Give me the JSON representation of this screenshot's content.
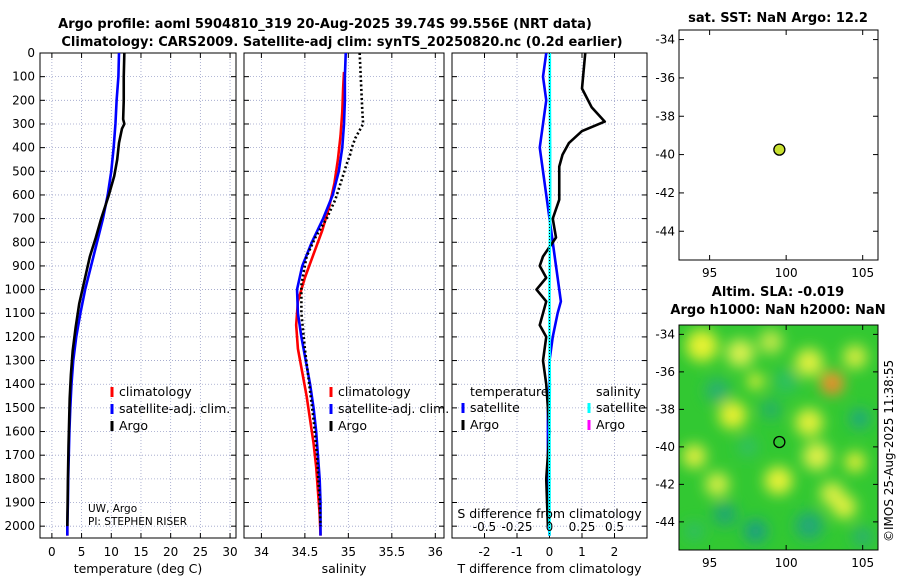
{
  "header": {
    "title_line1": "Argo profile: aoml 5904810_319 20-Aug-2025 39.74S 99.556E (NRT data)",
    "title_line2": "Climatology: CARS2009. Satellite-adj clim: synTS_20250820.nc (0.2d earlier)"
  },
  "colors": {
    "climatology": "#ff0000",
    "satellite_adj": "#0000ff",
    "argo": "#000000",
    "satellite_salinity": "#00ffff",
    "argo_salinity": "#ff00ff",
    "grid": "#9aa0c8",
    "marker_fill": "#c8e030"
  },
  "chart_data": [
    {
      "id": "temperature",
      "type": "line",
      "xlabel": "temperature (deg C)",
      "ylabel": "",
      "xlim": [
        -2,
        31
      ],
      "ylim": [
        2050,
        0
      ],
      "xticks": [
        0,
        5,
        10,
        15,
        20,
        25,
        30
      ],
      "yticks": [
        0,
        100,
        200,
        300,
        400,
        500,
        600,
        700,
        800,
        900,
        1000,
        1100,
        1200,
        1300,
        1400,
        1500,
        1600,
        1700,
        1800,
        1900,
        2000
      ],
      "legend": [
        "climatology",
        "satellite-adj. clim.",
        "Argo"
      ],
      "note_line1": "UW, Argo",
      "note_line2": "PI: STEPHEN RISER",
      "series": [
        {
          "name": "climatology",
          "x": [
            2.6,
            2.6
          ],
          "y": [
            1990,
            2040
          ]
        },
        {
          "name": "satellite-adj. clim.",
          "x": [
            11.3,
            11.2,
            10.9,
            10.7,
            10.4,
            10.0,
            9.4,
            8.6,
            7.6,
            6.6,
            5.6,
            4.8,
            4.1,
            3.6,
            3.3,
            3.1,
            2.95,
            2.85,
            2.75,
            2.7,
            2.65,
            2.6,
            2.6
          ],
          "y": [
            0,
            100,
            200,
            300,
            400,
            500,
            600,
            700,
            800,
            900,
            1000,
            1100,
            1200,
            1300,
            1400,
            1500,
            1600,
            1700,
            1800,
            1900,
            1950,
            2000,
            2040
          ]
        },
        {
          "name": "Argo",
          "x": [
            12.2,
            12.1,
            12.1,
            12.0,
            12.2,
            11.8,
            11.3,
            11.0,
            10.5,
            9.6,
            8.3,
            7.4,
            6.4,
            5.5,
            4.6,
            4.0,
            3.5,
            3.2,
            3.0,
            2.9,
            2.8,
            2.7,
            2.65,
            2.6
          ],
          "y": [
            0,
            100,
            200,
            280,
            300,
            320,
            380,
            450,
            520,
            600,
            700,
            780,
            860,
            960,
            1060,
            1160,
            1260,
            1360,
            1460,
            1560,
            1660,
            1800,
            1900,
            2000
          ]
        }
      ]
    },
    {
      "id": "salinity",
      "type": "line",
      "xlabel": "salinity",
      "ylabel": "",
      "xlim": [
        33.8,
        36.1
      ],
      "ylim": [
        2050,
        0
      ],
      "xticks": [
        34,
        34.5,
        35,
        35.5,
        36
      ],
      "xticklabels": [
        "34",
        "34.5",
        "35",
        "35.5",
        "36"
      ],
      "legend": [
        "climatology",
        "satellite-adj. clim.",
        "Argo"
      ],
      "series": [
        {
          "name": "climatology",
          "x": [
            34.95,
            34.94,
            34.93,
            34.91,
            34.88,
            34.84,
            34.78,
            34.7,
            34.6,
            34.5,
            34.42,
            34.4,
            34.42,
            34.47,
            34.52,
            34.56,
            34.6,
            34.63,
            34.65,
            34.67,
            34.68
          ],
          "y": [
            80,
            150,
            250,
            350,
            450,
            550,
            650,
            750,
            850,
            950,
            1050,
            1150,
            1250,
            1350,
            1450,
            1550,
            1650,
            1750,
            1850,
            1950,
            2040
          ]
        },
        {
          "name": "satellite-adj. clim.",
          "x": [
            34.97,
            34.96,
            34.96,
            34.95,
            34.93,
            34.89,
            34.82,
            34.71,
            34.58,
            34.47,
            34.41,
            34.42,
            34.46,
            34.51,
            34.56,
            34.6,
            34.63,
            34.65,
            34.67,
            34.68,
            34.68
          ],
          "y": [
            0,
            100,
            200,
            300,
            400,
            500,
            600,
            700,
            800,
            900,
            1000,
            1100,
            1200,
            1300,
            1400,
            1500,
            1600,
            1700,
            1800,
            1900,
            2040
          ]
        },
        {
          "name": "Argo",
          "x": [
            35.13,
            35.14,
            35.15,
            35.16,
            35.17,
            35.14,
            35.08,
            35.04,
            35.02,
            34.98,
            34.92,
            34.85,
            34.75,
            34.62,
            34.52,
            34.46,
            34.46,
            34.5,
            34.55,
            34.6,
            34.64,
            34.67,
            34.68
          ],
          "y": [
            0,
            80,
            160,
            240,
            300,
            320,
            360,
            400,
            430,
            470,
            540,
            620,
            700,
            780,
            860,
            980,
            1100,
            1250,
            1400,
            1550,
            1700,
            1900,
            2000
          ]
        }
      ]
    },
    {
      "id": "difference",
      "type": "line",
      "xlabel": "T difference from climatology",
      "xlabel_top": "S difference from climatology",
      "ylabel": "",
      "xlim": [
        -3,
        3
      ],
      "ylim": [
        2050,
        0
      ],
      "xticks": [
        -2,
        -1,
        0,
        1,
        2
      ],
      "top_ticks": [
        -0.5,
        -0.25,
        0,
        0.25,
        0.5
      ],
      "top_ticklabels": [
        "-0.5",
        "-0.25",
        "0",
        "0.25",
        "0.5"
      ],
      "legend_titles": [
        "temperature",
        "salinity"
      ],
      "legend": [
        "satellite",
        "Argo",
        "satellite",
        "Argo"
      ],
      "series": [
        {
          "name": "T satellite",
          "x": [
            -0.1,
            -0.2,
            -0.1,
            -0.2,
            -0.3,
            -0.2,
            -0.1,
            0.0,
            0.1,
            0.2,
            0.3,
            0.35,
            0.25,
            0.1,
            0.0,
            0.0,
            -0.05,
            -0.05,
            -0.05,
            -0.05,
            0.0
          ],
          "y": [
            0,
            100,
            200,
            300,
            400,
            500,
            600,
            700,
            800,
            900,
            1000,
            1050,
            1100,
            1200,
            1300,
            1400,
            1500,
            1600,
            1800,
            1900,
            2040
          ]
        },
        {
          "name": "T Argo",
          "x": [
            1.1,
            1.0,
            1.3,
            1.5,
            1.7,
            1.0,
            0.6,
            0.4,
            0.3,
            0.3,
            0.3,
            0.1,
            0.2,
            0.0,
            -0.2,
            -0.3,
            -0.1,
            -0.4,
            -0.1,
            -0.2,
            -0.3,
            -0.1,
            -0.2,
            -0.1,
            0.0,
            -0.1,
            -0.05
          ],
          "y": [
            0,
            150,
            230,
            260,
            290,
            330,
            380,
            430,
            480,
            560,
            620,
            700,
            780,
            820,
            860,
            900,
            950,
            1000,
            1050,
            1100,
            1150,
            1200,
            1300,
            1400,
            1600,
            1800,
            2000
          ]
        },
        {
          "name": "S satellite",
          "x": [
            0.01,
            0.01,
            0.02,
            0.02,
            0.01,
            0.0,
            0.0,
            0.01,
            0.0,
            0.0,
            0.0,
            0.0
          ],
          "y": [
            0,
            200,
            400,
            600,
            800,
            1000,
            1200,
            1400,
            1600,
            1800,
            1950,
            2040
          ]
        },
        {
          "name": "S Argo zero line",
          "x": [
            0,
            0
          ],
          "y": [
            0,
            2040
          ]
        }
      ]
    },
    {
      "id": "sst_map",
      "type": "scatter",
      "title": "sat. SST: NaN Argo: 12.2",
      "xlim": [
        93,
        106
      ],
      "ylim": [
        -45.5,
        -33.5
      ],
      "xticks": [
        95,
        100,
        105
      ],
      "yticks": [
        -34,
        -36,
        -38,
        -40,
        -42,
        -44
      ],
      "points": [
        {
          "x": 99.556,
          "y": -39.74
        }
      ]
    },
    {
      "id": "sla_map",
      "type": "heatmap",
      "title_line1": "Altim. SLA: -0.019",
      "title_line2": "Argo h1000: NaN h2000: NaN",
      "xlim": [
        93,
        106
      ],
      "ylim": [
        -45.5,
        -33.5
      ],
      "xticks": [
        95,
        100,
        105
      ],
      "yticks": [
        -34,
        -36,
        -38,
        -40,
        -42,
        -44
      ],
      "points": [
        {
          "x": 99.556,
          "y": -39.74
        }
      ]
    }
  ],
  "footer": {
    "credit": "©IMOS 25-Aug-2025 11:38:55"
  }
}
